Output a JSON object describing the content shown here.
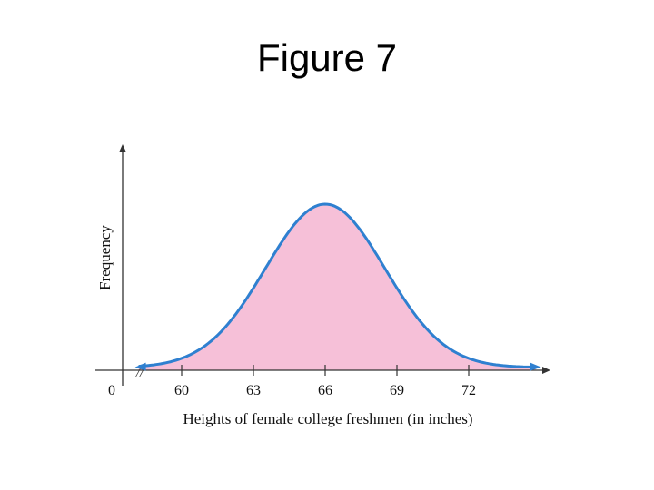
{
  "slide": {
    "title": "Figure 7"
  },
  "chart_data": {
    "type": "area",
    "title": "",
    "xlabel": "Heights of female college freshmen (in inches)",
    "ylabel": "Frequency",
    "origin_label": "0",
    "axis_break": "//",
    "xlim": [
      58.2,
      75.9
    ],
    "x_ticks": [
      60,
      63,
      66,
      69,
      72
    ],
    "x_tick_labels": [
      "60",
      "63",
      "66",
      "69",
      "72"
    ],
    "distribution": {
      "kind": "normal",
      "mean": 66,
      "sd": 2.5
    },
    "curve_x_range": [
      58.2,
      74.8
    ],
    "y_ticks": [],
    "grid": false,
    "legend": "none",
    "colors": {
      "curve": "#2f80d0",
      "fill": "#f6c0d8",
      "axis": "#333333",
      "text": "#111111"
    }
  }
}
